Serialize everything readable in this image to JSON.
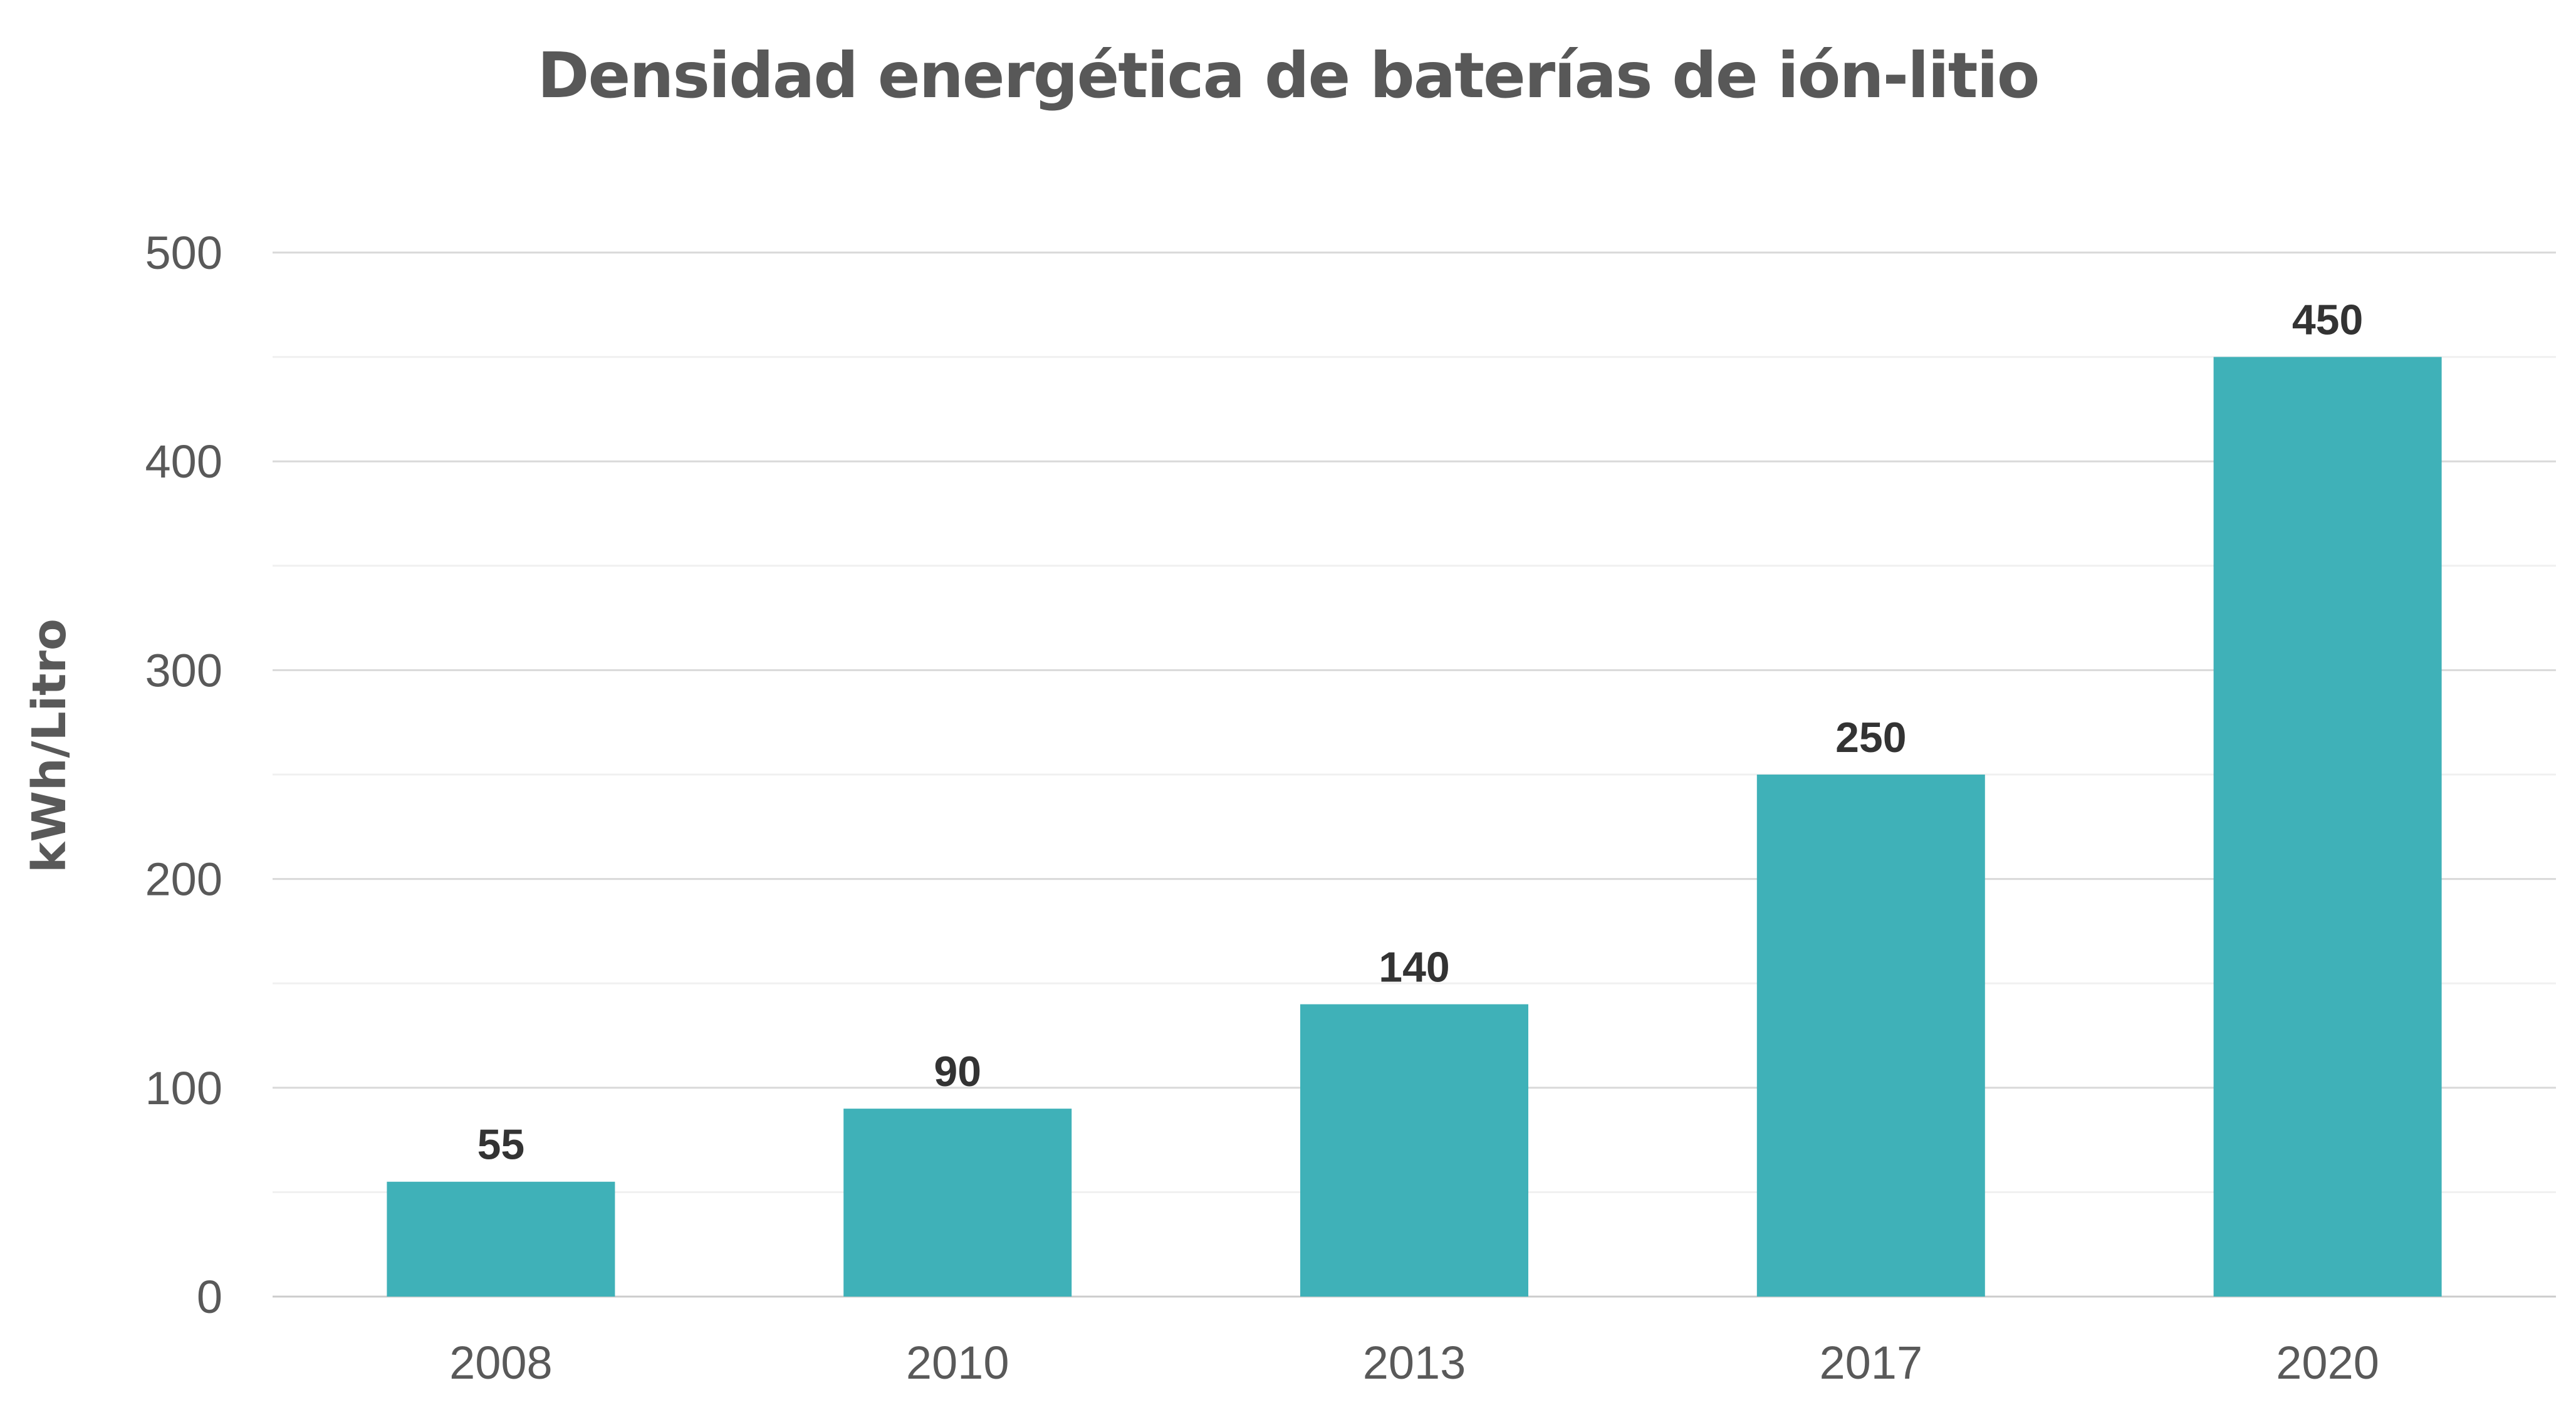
{
  "chart_data": {
    "type": "bar",
    "title": "Densidad energética de baterías de ión-litio",
    "xlabel": "",
    "ylabel": "kWh/Litro",
    "categories": [
      "2008",
      "2010",
      "2013",
      "2017",
      "2020"
    ],
    "values": [
      55,
      90,
      140,
      250,
      450
    ],
    "data_labels": [
      "55",
      "90",
      "140",
      "250",
      "450"
    ],
    "ylim": [
      0,
      500
    ],
    "yticks": [
      "0",
      "100",
      "200",
      "300",
      "400",
      "500"
    ],
    "grid": true,
    "legend": "none",
    "colors": {
      "bar": "#3fb1b8",
      "text": "#595959",
      "label": "#333333",
      "grid": "#d9d9d9"
    }
  }
}
